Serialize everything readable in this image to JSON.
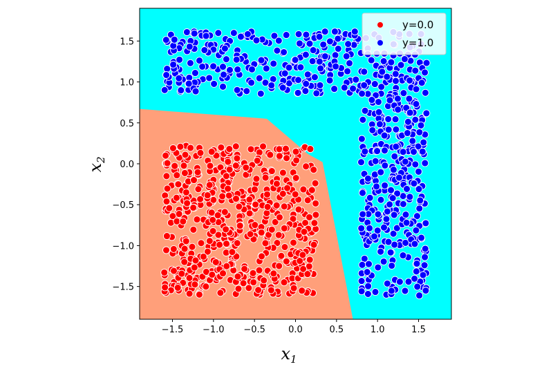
{
  "chart_data": {
    "type": "scatter",
    "xlabel": "x",
    "xlabel_sub": "1",
    "ylabel": "x",
    "ylabel_sub": "2",
    "xlim": [
      -1.9,
      1.9
    ],
    "ylim": [
      -1.9,
      1.9
    ],
    "xticks": [
      -1.5,
      -1.0,
      -0.5,
      0.0,
      0.5,
      1.0,
      1.5
    ],
    "xtick_labels": [
      "−1.5",
      "−1.0",
      "−0.5",
      "0.0",
      "0.5",
      "1.0",
      "1.5"
    ],
    "yticks": [
      -1.5,
      -1.0,
      -0.5,
      0.0,
      0.5,
      1.0,
      1.5
    ],
    "ytick_labels": [
      "−1.5",
      "−1.0",
      "−0.5",
      "0.0",
      "0.5",
      "1.0",
      "1.5"
    ],
    "grid": false,
    "legend_position": "top-right",
    "background_region_color": "#00ffff",
    "decision_region": {
      "label": "y=0.0",
      "color": "#ff9f7a",
      "boundary": [
        [
          -1.9,
          0.67
        ],
        [
          -0.35,
          0.55
        ],
        [
          0.0,
          0.25
        ],
        [
          0.15,
          0.12
        ],
        [
          0.33,
          0.02
        ],
        [
          0.7,
          -1.9
        ],
        [
          -1.9,
          -1.9
        ]
      ]
    },
    "series": [
      {
        "name": "y=0.0",
        "color": "#ff0000",
        "clusters": [
          {
            "shape": "rect",
            "x_range": [
              -1.6,
              0.25
            ],
            "y_range": [
              -1.6,
              0.22
            ],
            "count": 560,
            "seed": 11
          }
        ]
      },
      {
        "name": "y=1.0",
        "color": "#0000ff",
        "clusters": [
          {
            "shape": "rect",
            "x_range": [
              -1.6,
              1.6
            ],
            "y_range": [
              0.85,
              1.62
            ],
            "count": 330,
            "seed": 23
          },
          {
            "shape": "rect",
            "x_range": [
              0.8,
              1.6
            ],
            "y_range": [
              -1.62,
              0.85
            ],
            "count": 300,
            "seed": 37
          }
        ]
      }
    ]
  }
}
